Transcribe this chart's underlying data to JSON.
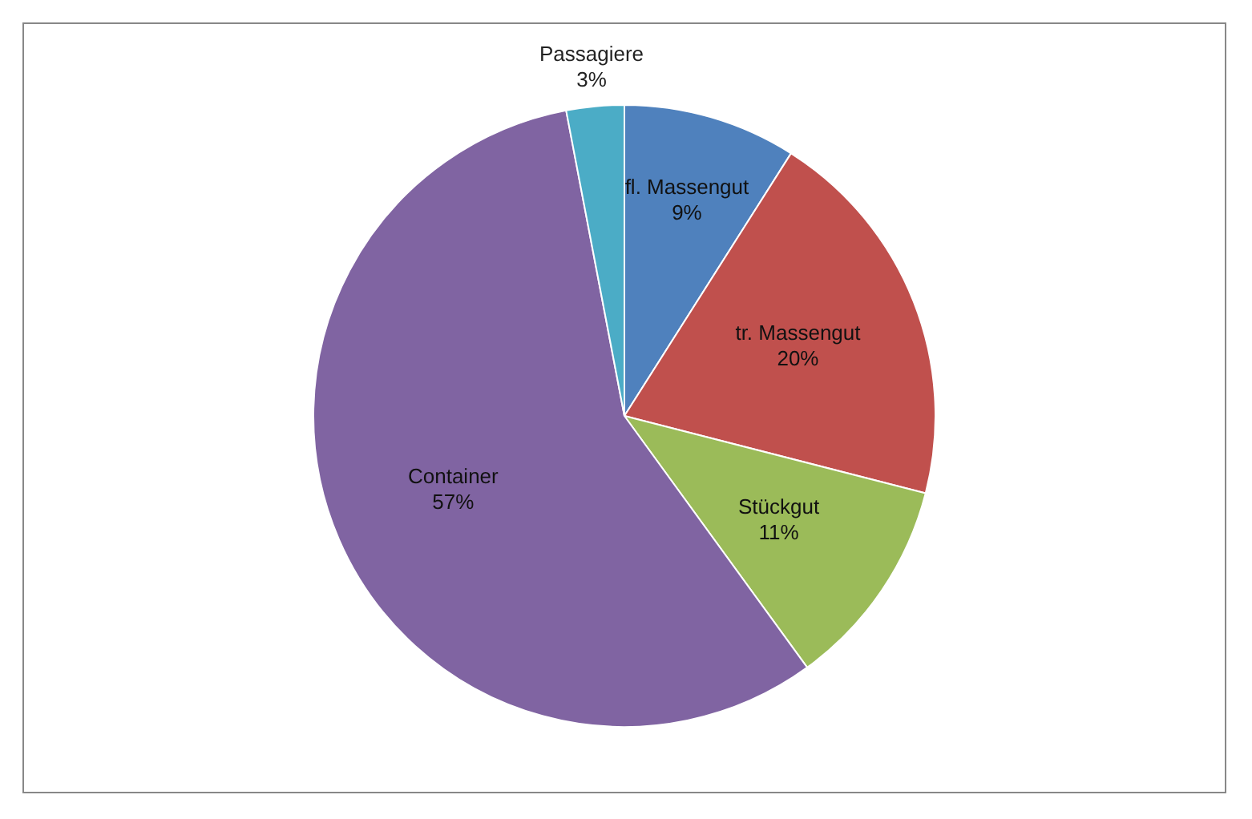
{
  "chart_data": {
    "type": "pie",
    "categories": [
      "fl. Massengut",
      "tr. Massengut",
      "Stückgut",
      "Container",
      "Passagiere"
    ],
    "values": [
      9,
      20,
      11,
      57,
      3
    ],
    "value_labels": [
      "9%",
      "20%",
      "11%",
      "57%",
      "3%"
    ],
    "colors": [
      "#4f81bd",
      "#c0504d",
      "#9bbb59",
      "#8064a2",
      "#4bacc6"
    ],
    "legend": false
  }
}
